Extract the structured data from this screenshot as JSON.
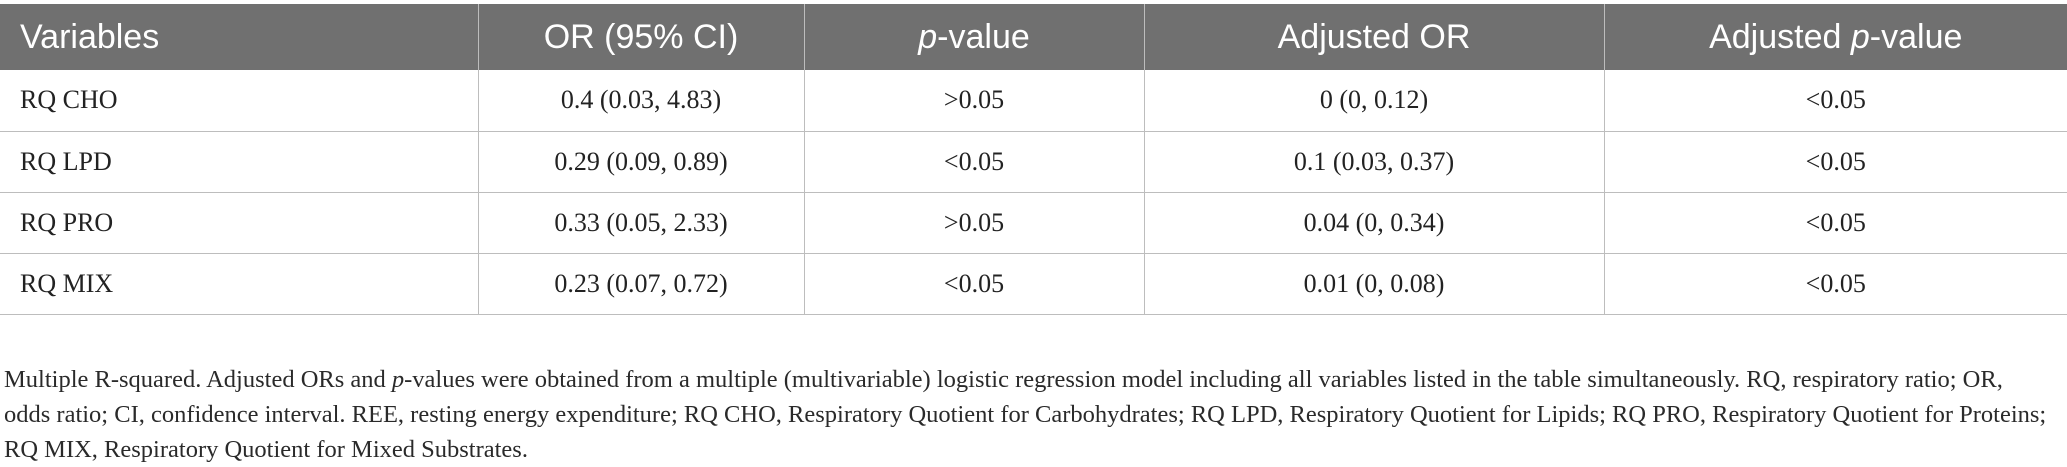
{
  "table": {
    "headers": {
      "variables": "Variables",
      "or_ci": "OR (95% CI)",
      "p_value_italic": "p",
      "p_value_rest": "-value",
      "adjusted_or": "Adjusted OR",
      "adjusted_p_prefix": "Adjusted ",
      "adjusted_p_italic": "p",
      "adjusted_p_rest": "-value"
    },
    "rows": [
      {
        "variable": "RQ CHO",
        "or_ci": "0.4 (0.03, 4.83)",
        "p_value": ">0.05",
        "adjusted_or": "0 (0, 0.12)",
        "adjusted_p": "<0.05"
      },
      {
        "variable": "RQ LPD",
        "or_ci": "0.29 (0.09, 0.89)",
        "p_value": "<0.05",
        "adjusted_or": "0.1 (0.03, 0.37)",
        "adjusted_p": "<0.05"
      },
      {
        "variable": "RQ PRO",
        "or_ci": "0.33 (0.05, 2.33)",
        "p_value": ">0.05",
        "adjusted_or": "0.04 (0, 0.34)",
        "adjusted_p": "<0.05"
      },
      {
        "variable": "RQ MIX",
        "or_ci": "0.23 (0.07, 0.72)",
        "p_value": "<0.05",
        "adjusted_or": "0.01 (0, 0.08)",
        "adjusted_p": "<0.05"
      }
    ]
  },
  "footnote": {
    "part1": "Multiple R-squared. Adjusted ORs and ",
    "italic_p": "p",
    "part2": "-values were obtained from a multiple (multivariable) logistic regression model including all variables listed in the table simultaneously. RQ, respiratory ratio; OR, odds ratio; CI, confidence interval. REE, resting energy expenditure; RQ CHO, Respiratory Quotient for Carbohydrates; RQ LPD, Respiratory Quotient for Lipids; RQ PRO, Respiratory Quotient for Proteins; RQ MIX, Respiratory Quotient for Mixed Substrates."
  },
  "colors": {
    "header_background": "#707070",
    "header_text": "#ffffff",
    "grid_line": "#bdbdbd"
  }
}
